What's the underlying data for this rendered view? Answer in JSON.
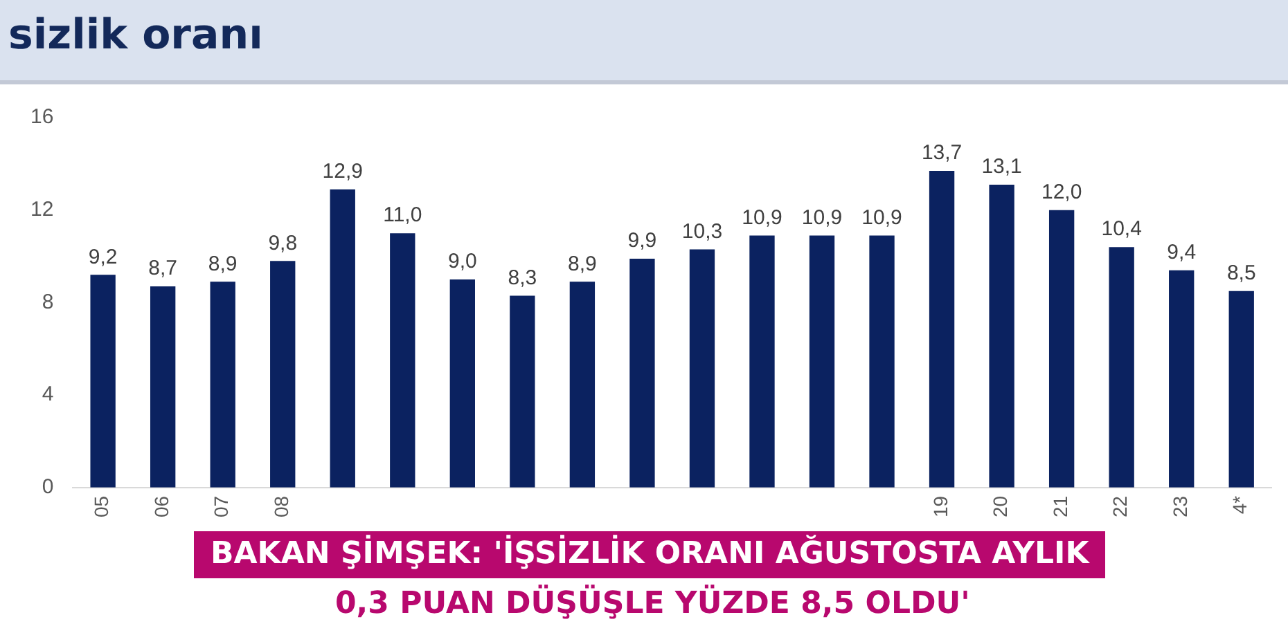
{
  "chart_data": {
    "type": "bar",
    "title": "sizlik oranı",
    "categories": [
      "05",
      "06",
      "07",
      "08",
      null,
      null,
      null,
      null,
      null,
      null,
      null,
      null,
      null,
      null,
      "19",
      "20",
      "21",
      "22",
      "23",
      "4*"
    ],
    "values": [
      9.2,
      8.7,
      8.9,
      9.8,
      12.9,
      11.0,
      9.0,
      8.3,
      8.9,
      9.9,
      10.3,
      10.9,
      10.9,
      10.9,
      13.7,
      13.1,
      12.0,
      10.4,
      9.4,
      8.5
    ],
    "value_labels": [
      "9,2",
      "8,7",
      "8,9",
      "9,8",
      "12,9",
      "11,0",
      "9,0",
      "8,3",
      "8,9",
      "9,9",
      "10,3",
      "10,9",
      "10,9",
      "10,9",
      "13,7",
      "13,1",
      "12,0",
      "10,4",
      "9,4",
      "8,5"
    ],
    "color": "#0b2260",
    "ylim": [
      0,
      16
    ],
    "yticks": [
      0,
      4,
      8,
      12,
      16
    ],
    "annotations": [
      "BAKAN ŞİMŞEK: 'İŞSİZLİK ORANI AĞUSTOSTA AYLIK",
      "0,3 PUAN DÜŞÜŞLE YÜZDE 8,5 OLDU'"
    ]
  }
}
